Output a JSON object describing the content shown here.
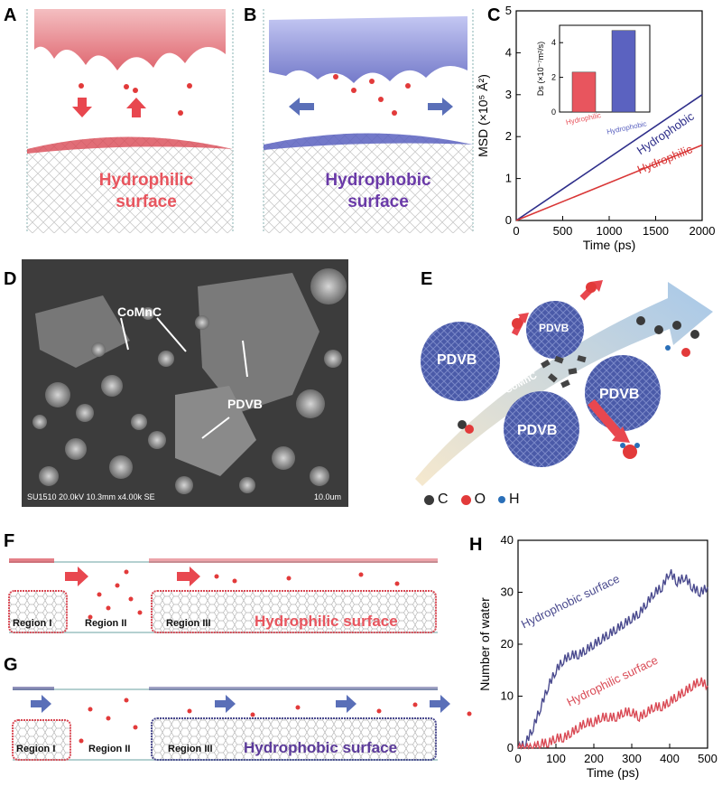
{
  "panels": {
    "A": {
      "label": "A",
      "text_line1": "Hydrophilic",
      "text_line2": "surface",
      "color": "#e8555e"
    },
    "B": {
      "label": "B",
      "text_line1": "Hydrophobic",
      "text_line2": "surface",
      "color": "#6a3aa8"
    },
    "C": {
      "label": "C"
    },
    "D": {
      "label": "D",
      "label_comnc": "CoMnC",
      "label_pdvb": "PDVB",
      "caption": "SU1510 20.0kV 10.3mm x4.00k SE",
      "scale": "10.0um"
    },
    "E": {
      "label": "E",
      "pdvb": "PDVB",
      "comnc": "CoMnC",
      "legend": [
        {
          "symbol": "C",
          "color": "#3a3a3a"
        },
        {
          "symbol": "O",
          "color": "#e23a3a"
        },
        {
          "symbol": "H",
          "color": "#2a6fb8"
        }
      ]
    },
    "F": {
      "label": "F",
      "region1": "Region I",
      "region2": "Region II",
      "region3": "Region III",
      "surface": "Hydrophilic surface",
      "color": "#e8555e"
    },
    "G": {
      "label": "G",
      "region1": "Region I",
      "region2": "Region II",
      "region3": "Region III",
      "surface": "Hydrophobic surface",
      "color": "#5b3a9a"
    },
    "H": {
      "label": "H"
    }
  },
  "chart_data": [
    {
      "id": "C",
      "type": "line",
      "xlabel": "Time (ps)",
      "ylabel": "MSD (×10⁵ Å²)",
      "xlim": [
        0,
        2000
      ],
      "ylim": [
        0,
        5
      ],
      "xticks": [
        0,
        500,
        1000,
        1500,
        2000
      ],
      "yticks": [
        0,
        1,
        2,
        3,
        4,
        5
      ],
      "series": [
        {
          "name": "Hydrophobic",
          "color": "#2e2e8a",
          "x": [
            0,
            2000
          ],
          "y": [
            0,
            3.0
          ]
        },
        {
          "name": "Hydrophilic",
          "color": "#d93636",
          "x": [
            0,
            2000
          ],
          "y": [
            0,
            1.8
          ]
        }
      ],
      "inset": {
        "type": "bar",
        "ylabel": "Ds (×10⁻⁷m²/s)",
        "ylim": [
          0,
          5
        ],
        "yticks": [
          0,
          2,
          4
        ],
        "categories": [
          "Hydrophilic",
          "Hydrophobic"
        ],
        "values": [
          2.3,
          4.7
        ],
        "colors": [
          "#e8555e",
          "#5b62c0"
        ]
      }
    },
    {
      "id": "H",
      "type": "line",
      "xlabel": "Time (ps)",
      "ylabel": "Number of water",
      "xlim": [
        0,
        500
      ],
      "ylim": [
        0,
        40
      ],
      "xticks": [
        0,
        100,
        200,
        300,
        400,
        500
      ],
      "yticks": [
        0,
        10,
        20,
        30,
        40
      ],
      "series": [
        {
          "name": "Hydrophobic surface",
          "color": "#4a4a8e",
          "x": [
            0,
            20,
            40,
            60,
            80,
            100,
            120,
            140,
            160,
            180,
            200,
            220,
            240,
            260,
            280,
            300,
            320,
            340,
            360,
            380,
            400,
            420,
            440,
            460,
            480,
            500
          ],
          "y": [
            0,
            1,
            4,
            8,
            12,
            15,
            17,
            18,
            18,
            19,
            20,
            21,
            22,
            23,
            24,
            25,
            26,
            28,
            30,
            31,
            34,
            32,
            33,
            31,
            30,
            31
          ]
        },
        {
          "name": "Hydrophilic surface",
          "color": "#d94a55",
          "x": [
            0,
            20,
            40,
            60,
            80,
            100,
            120,
            140,
            160,
            180,
            200,
            220,
            240,
            260,
            280,
            300,
            320,
            340,
            360,
            380,
            400,
            420,
            440,
            460,
            480,
            500
          ],
          "y": [
            0,
            0,
            0,
            1,
            1,
            2,
            2,
            3,
            4,
            5,
            5,
            6,
            6,
            6,
            7,
            7,
            6,
            7,
            8,
            8,
            9,
            10,
            11,
            12,
            13,
            12
          ]
        }
      ]
    }
  ]
}
